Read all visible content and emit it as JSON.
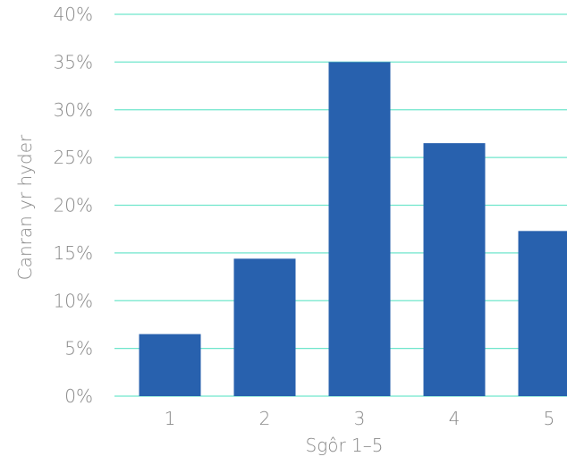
{
  "chart_data": {
    "type": "bar",
    "categories": [
      "1",
      "2",
      "3",
      "4",
      "5"
    ],
    "values": [
      6.5,
      14.4,
      35.0,
      26.5,
      17.3
    ],
    "value_unit": "%",
    "title": "",
    "xlabel": "Sgôr 1–5",
    "ylabel": "Canran yr hyder",
    "ylim": [
      0,
      40
    ],
    "yticks": [
      0,
      5,
      10,
      15,
      20,
      25,
      30,
      35,
      40
    ],
    "ytick_labels": [
      "0%",
      "5%",
      "10%",
      "15%",
      "20%",
      "25%",
      "30%",
      "35%",
      "40%"
    ],
    "grid": true,
    "legend": "none"
  },
  "colors": {
    "bar": "#2861ae",
    "grid": "#6fe6cc",
    "text": "#888888",
    "background": "#ffffff"
  }
}
